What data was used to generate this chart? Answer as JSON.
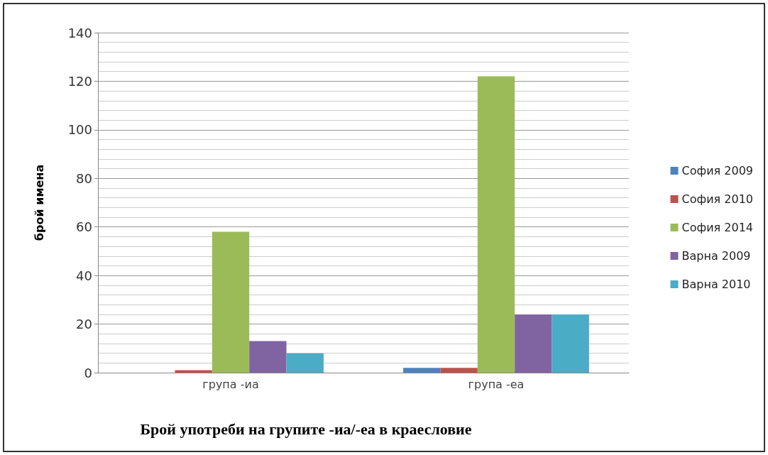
{
  "chart_data": {
    "type": "bar",
    "title": "Брой употреби на групите -иа/-еа в краесловие",
    "ylabel": "брой имена",
    "categories": [
      "група -иа",
      "група -еа"
    ],
    "series": [
      {
        "name": "София 2009",
        "color": "#4f81bd",
        "values": [
          0,
          2
        ]
      },
      {
        "name": "София 2010",
        "color": "#c0504d",
        "values": [
          1,
          2
        ]
      },
      {
        "name": "София 2014",
        "color": "#9bbb59",
        "values": [
          58,
          122
        ]
      },
      {
        "name": "Варна 2009",
        "color": "#8064a2",
        "values": [
          13,
          24
        ]
      },
      {
        "name": "Варна 2010",
        "color": "#4bacc6",
        "values": [
          8,
          24
        ]
      }
    ],
    "ylim": [
      0,
      140
    ],
    "yticks": [
      0,
      20,
      40,
      60,
      80,
      100,
      120,
      140
    ],
    "grid": true,
    "legend": "right"
  }
}
